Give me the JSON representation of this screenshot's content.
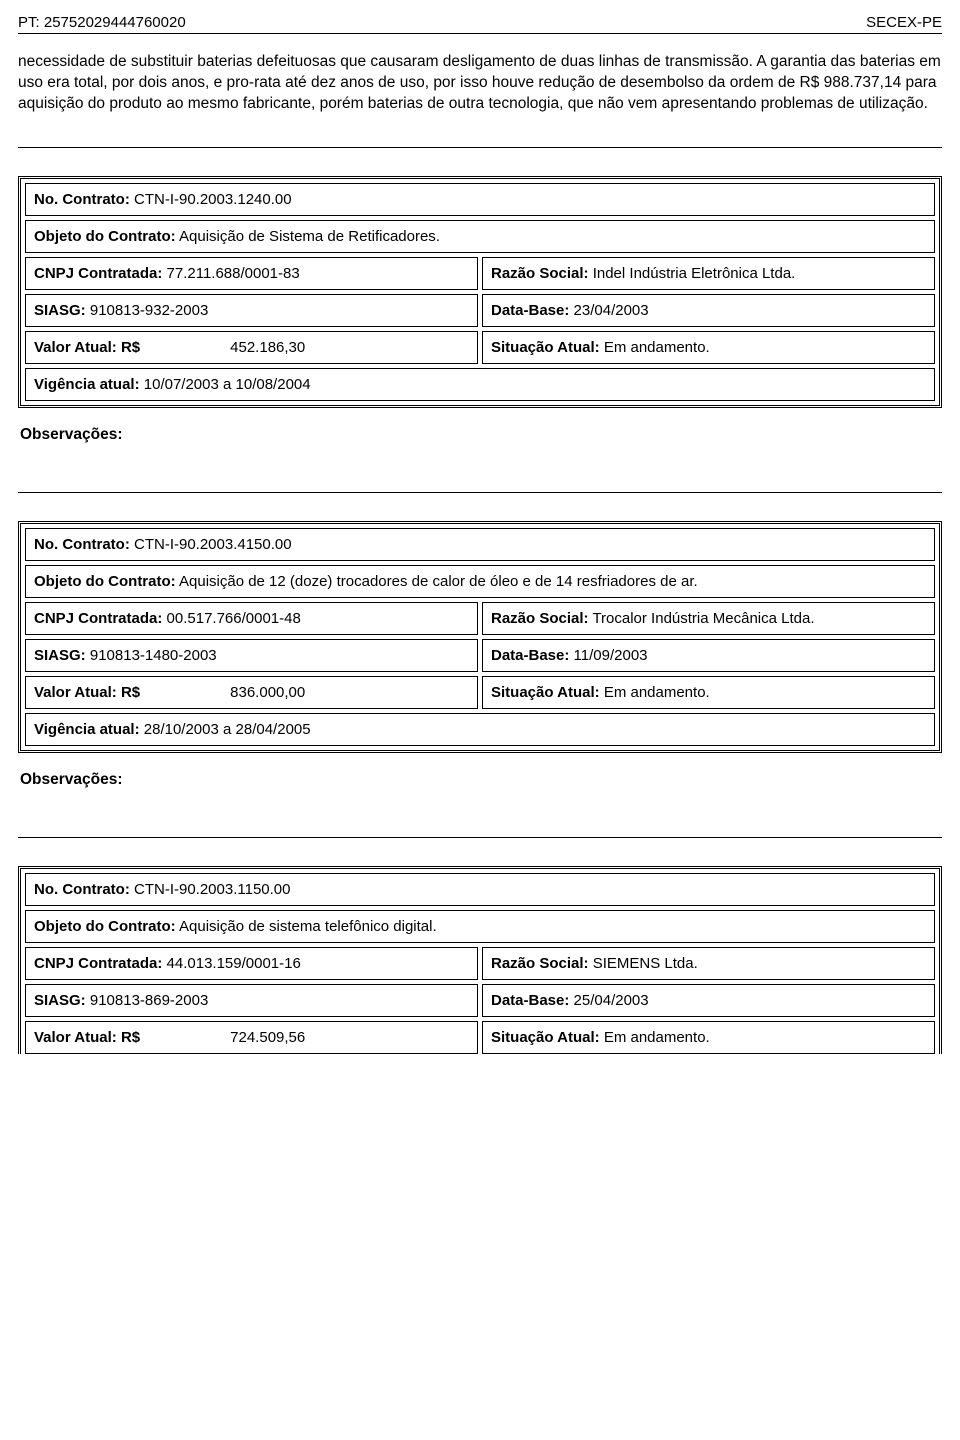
{
  "header": {
    "left_label": "PT:",
    "pt_number": "25752029444760020",
    "right": "SECEX-PE"
  },
  "intro_paragraph": "necessidade de substituir baterias defeituosas que causaram desligamento de duas linhas de transmissão. A garantia das baterias em uso era total, por dois anos, e pro-rata até dez anos de uso, por isso houve redução de desembolso da ordem de R$ 988.737,14 para aquisição do produto ao mesmo fabricante, porém baterias de outra tecnologia, que não vem apresentando problemas de utilização.",
  "labels": {
    "contrato_no": "No. Contrato:",
    "objeto": "Objeto do Contrato:",
    "cnpj": "CNPJ Contratada:",
    "razao": "Razão Social:",
    "siasg": "SIASG:",
    "data_base": "Data-Base:",
    "valor": "Valor Atual:",
    "currency": "R$",
    "situacao": "Situação Atual:",
    "vigencia": "Vigência atual:",
    "observacoes": "Observações:"
  },
  "contracts": [
    {
      "numero": "CTN-I-90.2003.1240.00",
      "objeto": "Aquisição de Sistema de Retificadores.",
      "cnpj": "77.211.688/0001-83",
      "razao": "Indel Indústria Eletrônica Ltda.",
      "siasg": "910813-932-2003",
      "data_base": "23/04/2003",
      "valor": "452.186,30",
      "situacao": "Em andamento.",
      "vigencia": "10/07/2003 a 10/08/2004"
    },
    {
      "numero": "CTN-I-90.2003.4150.00",
      "objeto": "Aquisição de 12 (doze) trocadores de calor de óleo e de 14 resfriadores de ar.",
      "cnpj": "00.517.766/0001-48",
      "razao": "Trocalor Indústria Mecânica Ltda.",
      "siasg": "910813-1480-2003",
      "data_base": "11/09/2003",
      "valor": "836.000,00",
      "situacao": "Em andamento.",
      "vigencia": "28/10/2003 a 28/04/2005"
    },
    {
      "numero": "CTN-I-90.2003.1150.00",
      "objeto": "Aquisição de sistema telefônico digital.",
      "cnpj": "44.013.159/0001-16",
      "razao": "SIEMENS Ltda.",
      "siasg": "910813-869-2003",
      "data_base": "25/04/2003",
      "valor": "724.509,56",
      "situacao": "Em andamento.",
      "vigencia": ""
    }
  ]
}
